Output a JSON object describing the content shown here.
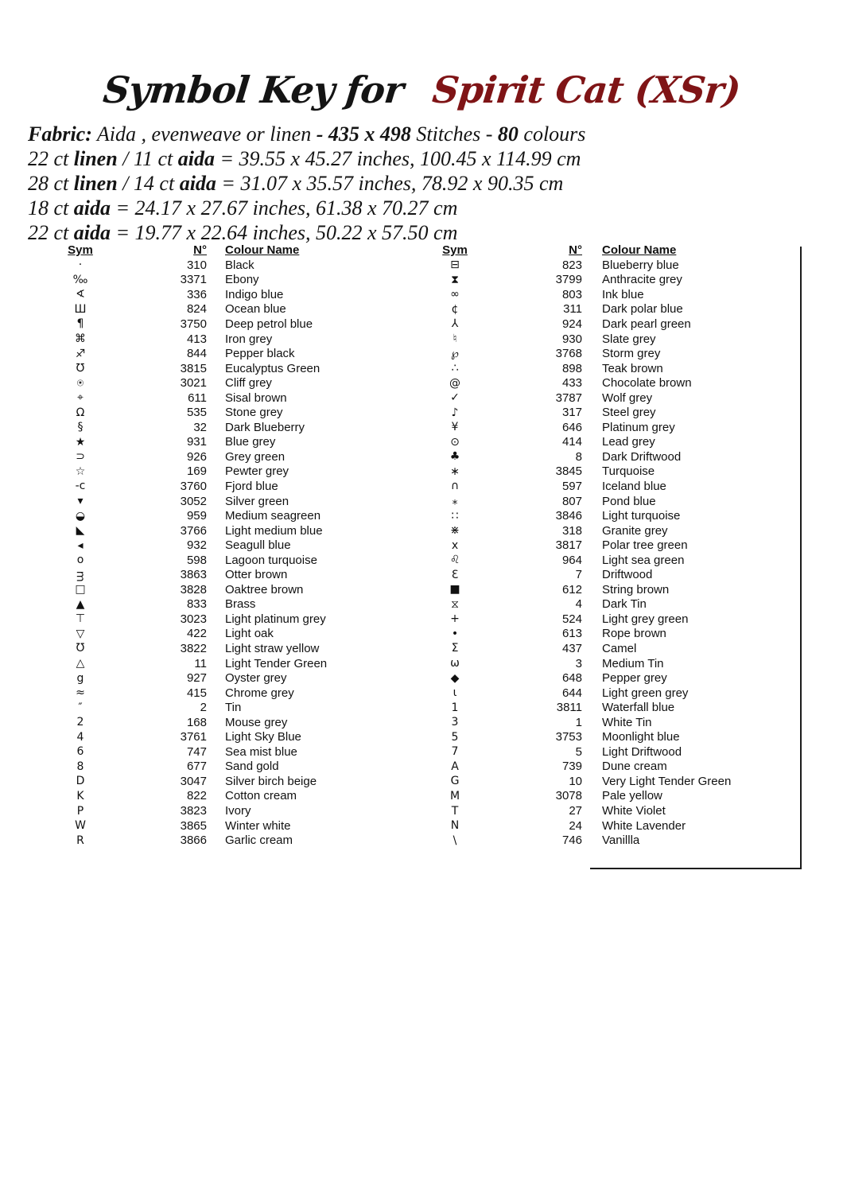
{
  "title": {
    "prefix": "Symbol Key for",
    "pattern_name": "Spirit Cat (XSr)",
    "accent_color": "#7f1416"
  },
  "fabric_lines": [
    {
      "segments": [
        {
          "t": "Fabric:",
          "b": true
        },
        {
          "t": "  Aida , evenweave or  linen ",
          "b": false
        },
        {
          "t": "- 435 x 498 ",
          "b": true
        },
        {
          "t": "Stitches - ",
          "b": false
        },
        {
          "t": "80",
          "b": true
        },
        {
          "t": " colours",
          "b": false
        }
      ]
    },
    {
      "segments": [
        {
          "t": "22 ct ",
          "b": false
        },
        {
          "t": "linen",
          "b": true
        },
        {
          "t": " / 11 ct ",
          "b": false
        },
        {
          "t": "aida",
          "b": true
        },
        {
          "t": " = 39.55 x 45.27 inches, 100.45 x 114.99 cm",
          "b": false
        }
      ]
    },
    {
      "segments": [
        {
          "t": "28 ct ",
          "b": false
        },
        {
          "t": "linen",
          "b": true
        },
        {
          "t": " / 14 ct ",
          "b": false
        },
        {
          "t": "aida",
          "b": true
        },
        {
          "t": " = 31.07 x 35.57 inches, 78.92 x 90.35 cm",
          "b": false
        }
      ]
    },
    {
      "segments": [
        {
          "t": "18 ct ",
          "b": false
        },
        {
          "t": "aida",
          "b": true
        },
        {
          "t": "  = 24.17 x 27.67 inches, 61.38 x 70.27 cm",
          "b": false
        }
      ]
    },
    {
      "segments": [
        {
          "t": "22 ct ",
          "b": false
        },
        {
          "t": "aida",
          "b": true
        },
        {
          "t": " = 19.77 x 22.64 inches, 50.22 x 57.50 cm",
          "b": false
        }
      ]
    }
  ],
  "table_headers": {
    "sym": "Sym",
    "num": "N°",
    "name": "Colour Name"
  },
  "left_table": [
    {
      "sym": "·",
      "num": "310",
      "name": "Black"
    },
    {
      "sym": "‰",
      "num": "3371",
      "name": "Ebony"
    },
    {
      "sym": "∢",
      "num": "336",
      "name": "Indigo blue"
    },
    {
      "sym": "Ш",
      "num": "824",
      "name": "Ocean blue"
    },
    {
      "sym": "¶",
      "num": "3750",
      "name": "Deep petrol blue"
    },
    {
      "sym": "⌘",
      "num": "413",
      "name": "Iron grey"
    },
    {
      "sym": "♐",
      "num": "844",
      "name": "Pepper black"
    },
    {
      "sym": "℧",
      "num": "3815",
      "name": "Eucalyptus Green"
    },
    {
      "sym": "⍟",
      "num": "3021",
      "name": "Cliff grey"
    },
    {
      "sym": "⌖",
      "num": "611",
      "name": "Sisal brown"
    },
    {
      "sym": "Ω",
      "num": "535",
      "name": "Stone grey"
    },
    {
      "sym": "§",
      "num": "32",
      "name": "Dark Blueberry"
    },
    {
      "sym": "★",
      "num": "931",
      "name": "Blue grey"
    },
    {
      "sym": "⊃",
      "num": "926",
      "name": "Grey green"
    },
    {
      "sym": "☆",
      "num": "169",
      "name": "Pewter grey"
    },
    {
      "sym": "-c",
      "num": "3760",
      "name": "Fjord blue"
    },
    {
      "sym": "▾",
      "num": "3052",
      "name": "Silver green"
    },
    {
      "sym": "◒",
      "num": "959",
      "name": "Medium seagreen"
    },
    {
      "sym": "◣",
      "num": "3766",
      "name": "Light medium blue"
    },
    {
      "sym": "◂",
      "num": "932",
      "name": "Seagull blue"
    },
    {
      "sym": "o",
      "num": "598",
      "name": "Lagoon turquoise"
    },
    {
      "sym": "ᴟ",
      "num": "3863",
      "name": "Otter brown"
    },
    {
      "sym": "□",
      "num": "3828",
      "name": "Oaktree brown"
    },
    {
      "sym": "▲",
      "num": "833",
      "name": "Brass"
    },
    {
      "sym": "⊤",
      "num": "3023",
      "name": "Light platinum grey"
    },
    {
      "sym": "▽",
      "num": "422",
      "name": "Light oak"
    },
    {
      "sym": "Ʊ",
      "num": "3822",
      "name": "Light straw yellow"
    },
    {
      "sym": "△",
      "num": "11",
      "name": "Light Tender Green"
    },
    {
      "sym": "g",
      "num": "927",
      "name": "Oyster grey"
    },
    {
      "sym": "≈",
      "num": "415",
      "name": "Chrome grey"
    },
    {
      "sym": "″",
      "num": "2",
      "name": "Tin"
    },
    {
      "sym": "2",
      "num": "168",
      "name": "Mouse grey"
    },
    {
      "sym": "4",
      "num": "3761",
      "name": "Light Sky Blue"
    },
    {
      "sym": "6",
      "num": "747",
      "name": "Sea mist blue"
    },
    {
      "sym": "8",
      "num": "677",
      "name": "Sand gold"
    },
    {
      "sym": "D",
      "num": "3047",
      "name": "Silver birch beige"
    },
    {
      "sym": "K",
      "num": "822",
      "name": "Cotton cream"
    },
    {
      "sym": "P",
      "num": "3823",
      "name": "Ivory"
    },
    {
      "sym": "W",
      "num": "3865",
      "name": "Winter white"
    },
    {
      "sym": "R",
      "num": "3866",
      "name": "Garlic cream"
    }
  ],
  "right_table": [
    {
      "sym": "⊟",
      "num": "823",
      "name": "Blueberry blue"
    },
    {
      "sym": "⧗",
      "num": "3799",
      "name": "Anthracite grey"
    },
    {
      "sym": "∞",
      "num": "803",
      "name": "Ink blue"
    },
    {
      "sym": "¢",
      "num": "311",
      "name": "Dark polar blue"
    },
    {
      "sym": "⅄",
      "num": "924",
      "name": "Dark pearl green"
    },
    {
      "sym": "♮",
      "num": "930",
      "name": "Slate grey"
    },
    {
      "sym": "℘",
      "num": "3768",
      "name": "Storm grey"
    },
    {
      "sym": "∴",
      "num": "898",
      "name": "Teak brown"
    },
    {
      "sym": "@",
      "num": "433",
      "name": "Chocolate brown"
    },
    {
      "sym": "✓",
      "num": "3787",
      "name": "Wolf grey"
    },
    {
      "sym": "♪",
      "num": "317",
      "name": "Steel grey"
    },
    {
      "sym": "¥",
      "num": "646",
      "name": "Platinum grey"
    },
    {
      "sym": "⊙",
      "num": "414",
      "name": "Lead grey"
    },
    {
      "sym": "♣",
      "num": "8",
      "name": "Dark Driftwood"
    },
    {
      "sym": "∗",
      "num": "3845",
      "name": "Turquoise"
    },
    {
      "sym": "∩",
      "num": "597",
      "name": "Iceland blue"
    },
    {
      "sym": "⁎",
      "num": "807",
      "name": "Pond blue"
    },
    {
      "sym": "∷",
      "num": "3846",
      "name": "Light turquoise"
    },
    {
      "sym": "⋇",
      "num": "318",
      "name": "Granite grey"
    },
    {
      "sym": "x",
      "num": "3817",
      "name": "Polar tree green"
    },
    {
      "sym": "♌",
      "num": "964",
      "name": "Light sea green"
    },
    {
      "sym": "Ɛ",
      "num": "7",
      "name": "Driftwood"
    },
    {
      "sym": "■",
      "num": "612",
      "name": "String brown"
    },
    {
      "sym": "⧖",
      "num": "4",
      "name": "Dark Tin"
    },
    {
      "sym": "+",
      "num": "524",
      "name": "Light grey green"
    },
    {
      "sym": "•",
      "num": "613",
      "name": "Rope brown"
    },
    {
      "sym": "Σ",
      "num": "437",
      "name": "Camel"
    },
    {
      "sym": "ω",
      "num": "3",
      "name": "Medium Tin"
    },
    {
      "sym": "◆",
      "num": "648",
      "name": "Pepper grey"
    },
    {
      "sym": "ɩ",
      "num": "644",
      "name": "Light green grey"
    },
    {
      "sym": "1",
      "num": "3811",
      "name": "Waterfall blue"
    },
    {
      "sym": "3",
      "num": "1",
      "name": "White Tin"
    },
    {
      "sym": "5",
      "num": "3753",
      "name": "Moonlight blue"
    },
    {
      "sym": "7",
      "num": "5",
      "name": "Light Driftwood"
    },
    {
      "sym": "A",
      "num": "739",
      "name": "Dune cream"
    },
    {
      "sym": "G",
      "num": "10",
      "name": "Very Light Tender Green"
    },
    {
      "sym": "M",
      "num": "3078",
      "name": "Pale yellow"
    },
    {
      "sym": "T",
      "num": "27",
      "name": "White Violet"
    },
    {
      "sym": "N",
      "num": "24",
      "name": "White Lavender"
    },
    {
      "sym": "\\",
      "num": "746",
      "name": "Vanillla"
    }
  ]
}
